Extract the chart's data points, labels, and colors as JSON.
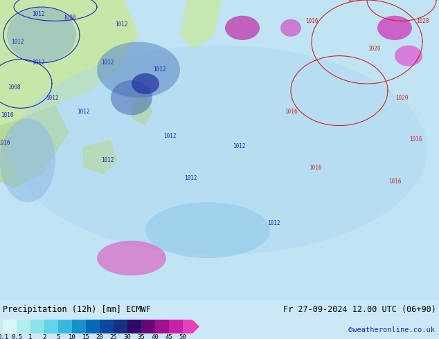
{
  "title_left": "Precipitation (12h) [mm] ECMWF",
  "title_right": "Fr 27-09-2024 12.00 UTC (06+90)",
  "credit": "©weatheronline.co.uk",
  "colorbar_labels": [
    "0.1",
    "0.5",
    "1",
    "2",
    "5",
    "10",
    "15",
    "20",
    "25",
    "30",
    "35",
    "40",
    "45",
    "50"
  ],
  "cb_colors": [
    "#d8f8f8",
    "#b0eef0",
    "#88e4e8",
    "#60d4e8",
    "#38b8e0",
    "#1890cc",
    "#0868b8",
    "#0848a0",
    "#183080",
    "#300868",
    "#680878",
    "#a01090",
    "#c820a8",
    "#e840b8",
    "#f070cc"
  ],
  "fig_bg": "#cce8f8",
  "bottom_bg": "#d8ecf8",
  "fig_width": 6.34,
  "fig_height": 4.9,
  "dpi": 100,
  "title_fontsize": 8.5,
  "credit_fontsize": 7.5,
  "cb_label_fontsize": 6.5
}
